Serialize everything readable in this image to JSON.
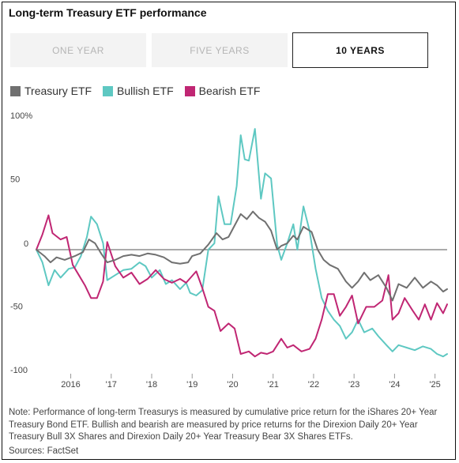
{
  "title": "Long-term Treasury ETF performance",
  "tabs": [
    {
      "label": "ONE YEAR",
      "active": false
    },
    {
      "label": "FIVE YEARS",
      "active": false
    },
    {
      "label": "10 YEARS",
      "active": true
    }
  ],
  "note": "Note: Performance of long-term Treasurys is measured by cumulative price return for the iShares 20+ Year Treasury Bond ETF. Bullish and bearish are measured by price returns for the Direxion Daily 20+ Year Treasury Bull 3X Shares and Direxion Daily 20+ Year Treasury Bear 3X Shares ETFs.",
  "source": "Sources: FactSet",
  "chart_data": {
    "type": "line",
    "ylim": [
      -100,
      100
    ],
    "xlim": [
      2015.15,
      2025.3
    ],
    "y_ticks": [
      {
        "value": 100,
        "label": "100%"
      },
      {
        "value": 50,
        "label": "50"
      },
      {
        "value": 0,
        "label": "0"
      },
      {
        "value": -50,
        "label": "-50"
      },
      {
        "value": -100,
        "label": "-100"
      }
    ],
    "x_ticks": [
      {
        "value": 2016,
        "label": "2016"
      },
      {
        "value": 2017,
        "label": "'17"
      },
      {
        "value": 2018,
        "label": "'18"
      },
      {
        "value": 2019,
        "label": "'19"
      },
      {
        "value": 2020,
        "label": "'20"
      },
      {
        "value": 2021,
        "label": "'21"
      },
      {
        "value": 2022,
        "label": "'22"
      },
      {
        "value": 2023,
        "label": "'23"
      },
      {
        "value": 2024,
        "label": "'24"
      },
      {
        "value": 2025,
        "label": "'25"
      }
    ],
    "zero_line": 0,
    "series": [
      {
        "name": "Treasury ETF",
        "color": "#707070",
        "points": [
          [
            2015.15,
            0
          ],
          [
            2015.35,
            -5
          ],
          [
            2015.5,
            -10
          ],
          [
            2015.65,
            -6
          ],
          [
            2015.85,
            -8
          ],
          [
            2016.1,
            -5
          ],
          [
            2016.3,
            -2
          ],
          [
            2016.45,
            8
          ],
          [
            2016.6,
            5
          ],
          [
            2016.75,
            -3
          ],
          [
            2016.9,
            -10
          ],
          [
            2017.1,
            -8
          ],
          [
            2017.3,
            -5
          ],
          [
            2017.5,
            -4
          ],
          [
            2017.7,
            -5
          ],
          [
            2017.9,
            -3
          ],
          [
            2018.1,
            -4
          ],
          [
            2018.3,
            -6
          ],
          [
            2018.5,
            -10
          ],
          [
            2018.7,
            -11
          ],
          [
            2018.9,
            -10
          ],
          [
            2019.0,
            -5
          ],
          [
            2019.2,
            -3
          ],
          [
            2019.4,
            4
          ],
          [
            2019.6,
            13
          ],
          [
            2019.75,
            8
          ],
          [
            2019.9,
            10
          ],
          [
            2020.05,
            19
          ],
          [
            2020.2,
            28
          ],
          [
            2020.35,
            24
          ],
          [
            2020.5,
            30
          ],
          [
            2020.65,
            25
          ],
          [
            2020.8,
            22
          ],
          [
            2020.95,
            15
          ],
          [
            2021.1,
            0
          ],
          [
            2021.2,
            3
          ],
          [
            2021.35,
            5
          ],
          [
            2021.5,
            11
          ],
          [
            2021.6,
            8
          ],
          [
            2021.75,
            18
          ],
          [
            2021.95,
            14
          ],
          [
            2022.1,
            0
          ],
          [
            2022.25,
            -8
          ],
          [
            2022.4,
            -12
          ],
          [
            2022.6,
            -15
          ],
          [
            2022.8,
            -25
          ],
          [
            2022.95,
            -30
          ],
          [
            2023.1,
            -25
          ],
          [
            2023.25,
            -18
          ],
          [
            2023.4,
            -24
          ],
          [
            2023.6,
            -20
          ],
          [
            2023.8,
            -30
          ],
          [
            2023.95,
            -40
          ],
          [
            2024.1,
            -27
          ],
          [
            2024.3,
            -30
          ],
          [
            2024.5,
            -22
          ],
          [
            2024.7,
            -30
          ],
          [
            2024.9,
            -25
          ],
          [
            2025.05,
            -28
          ],
          [
            2025.2,
            -33
          ],
          [
            2025.3,
            -31
          ]
        ]
      },
      {
        "name": "Bullish ETF",
        "color": "#5ec8c2",
        "points": [
          [
            2015.15,
            0
          ],
          [
            2015.3,
            -10
          ],
          [
            2015.45,
            -28
          ],
          [
            2015.6,
            -16
          ],
          [
            2015.75,
            -22
          ],
          [
            2015.95,
            -15
          ],
          [
            2016.1,
            -14
          ],
          [
            2016.25,
            -5
          ],
          [
            2016.4,
            10
          ],
          [
            2016.5,
            26
          ],
          [
            2016.65,
            20
          ],
          [
            2016.8,
            5
          ],
          [
            2016.9,
            -24
          ],
          [
            2017.1,
            -20
          ],
          [
            2017.3,
            -16
          ],
          [
            2017.5,
            -15
          ],
          [
            2017.7,
            -10
          ],
          [
            2017.85,
            -13
          ],
          [
            2018.0,
            -22
          ],
          [
            2018.2,
            -16
          ],
          [
            2018.35,
            -27
          ],
          [
            2018.5,
            -24
          ],
          [
            2018.7,
            -31
          ],
          [
            2018.85,
            -26
          ],
          [
            2018.95,
            -34
          ],
          [
            2019.1,
            -36
          ],
          [
            2019.25,
            -32
          ],
          [
            2019.4,
            0
          ],
          [
            2019.55,
            5
          ],
          [
            2019.65,
            42
          ],
          [
            2019.8,
            20
          ],
          [
            2019.95,
            20
          ],
          [
            2020.1,
            50
          ],
          [
            2020.2,
            90
          ],
          [
            2020.3,
            71
          ],
          [
            2020.4,
            70
          ],
          [
            2020.55,
            95
          ],
          [
            2020.7,
            40
          ],
          [
            2020.8,
            60
          ],
          [
            2020.95,
            56
          ],
          [
            2021.1,
            4
          ],
          [
            2021.2,
            -8
          ],
          [
            2021.35,
            5
          ],
          [
            2021.5,
            20
          ],
          [
            2021.6,
            0
          ],
          [
            2021.75,
            34
          ],
          [
            2021.9,
            15
          ],
          [
            2022.05,
            -15
          ],
          [
            2022.2,
            -38
          ],
          [
            2022.35,
            -48
          ],
          [
            2022.5,
            -55
          ],
          [
            2022.65,
            -60
          ],
          [
            2022.8,
            -70
          ],
          [
            2022.95,
            -65
          ],
          [
            2023.1,
            -55
          ],
          [
            2023.25,
            -65
          ],
          [
            2023.45,
            -62
          ],
          [
            2023.6,
            -68
          ],
          [
            2023.8,
            -75
          ],
          [
            2023.95,
            -80
          ],
          [
            2024.1,
            -75
          ],
          [
            2024.3,
            -77
          ],
          [
            2024.5,
            -79
          ],
          [
            2024.7,
            -76
          ],
          [
            2024.9,
            -78
          ],
          [
            2025.05,
            -82
          ],
          [
            2025.2,
            -84
          ],
          [
            2025.3,
            -82
          ]
        ]
      },
      {
        "name": "Bearish ETF",
        "color": "#c02673",
        "points": [
          [
            2015.15,
            0
          ],
          [
            2015.3,
            12
          ],
          [
            2015.45,
            27
          ],
          [
            2015.55,
            13
          ],
          [
            2015.75,
            8
          ],
          [
            2015.9,
            10
          ],
          [
            2016.05,
            -12
          ],
          [
            2016.2,
            -20
          ],
          [
            2016.35,
            -28
          ],
          [
            2016.5,
            -38
          ],
          [
            2016.65,
            -38
          ],
          [
            2016.8,
            -25
          ],
          [
            2016.9,
            6
          ],
          [
            2017.1,
            -13
          ],
          [
            2017.3,
            -22
          ],
          [
            2017.5,
            -18
          ],
          [
            2017.7,
            -27
          ],
          [
            2017.9,
            -23
          ],
          [
            2018.1,
            -16
          ],
          [
            2018.3,
            -23
          ],
          [
            2018.5,
            -26
          ],
          [
            2018.7,
            -23
          ],
          [
            2018.85,
            -26
          ],
          [
            2019.1,
            -17
          ],
          [
            2019.25,
            -30
          ],
          [
            2019.4,
            -45
          ],
          [
            2019.55,
            -48
          ],
          [
            2019.7,
            -64
          ],
          [
            2019.9,
            -58
          ],
          [
            2020.05,
            -62
          ],
          [
            2020.2,
            -82
          ],
          [
            2020.4,
            -80
          ],
          [
            2020.55,
            -84
          ],
          [
            2020.7,
            -81
          ],
          [
            2020.85,
            -82
          ],
          [
            2021.0,
            -80
          ],
          [
            2021.2,
            -70
          ],
          [
            2021.35,
            -77
          ],
          [
            2021.5,
            -75
          ],
          [
            2021.7,
            -80
          ],
          [
            2021.9,
            -78
          ],
          [
            2022.05,
            -70
          ],
          [
            2022.2,
            -55
          ],
          [
            2022.35,
            -35
          ],
          [
            2022.5,
            -35
          ],
          [
            2022.65,
            -52
          ],
          [
            2022.8,
            -45
          ],
          [
            2022.95,
            -36
          ],
          [
            2023.1,
            -58
          ],
          [
            2023.3,
            -45
          ],
          [
            2023.5,
            -45
          ],
          [
            2023.7,
            -40
          ],
          [
            2023.85,
            -20
          ],
          [
            2023.95,
            -55
          ],
          [
            2024.1,
            -50
          ],
          [
            2024.25,
            -38
          ],
          [
            2024.45,
            -48
          ],
          [
            2024.6,
            -55
          ],
          [
            2024.75,
            -43
          ],
          [
            2024.9,
            -55
          ],
          [
            2025.05,
            -42
          ],
          [
            2025.2,
            -50
          ],
          [
            2025.3,
            -43
          ]
        ]
      }
    ]
  }
}
